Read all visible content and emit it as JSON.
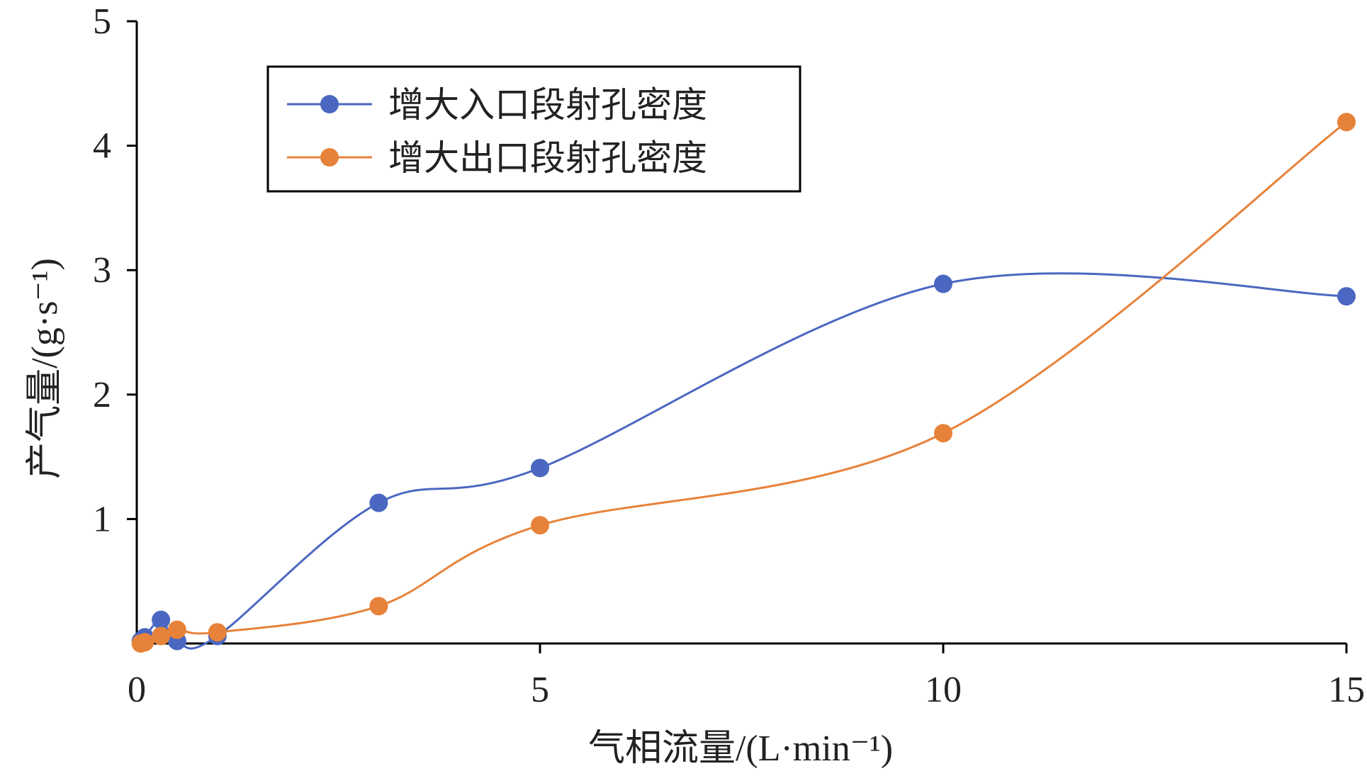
{
  "chart_data": {
    "type": "line",
    "smooth": true,
    "xlabel": "气相流量/(L·min⁻¹)",
    "ylabel": "产气量/(g·s⁻¹)",
    "xlim": [
      0,
      15
    ],
    "ylim": [
      0,
      5
    ],
    "xticks": [
      "0",
      "5",
      "10",
      "15"
    ],
    "yticks": [
      "1",
      "2",
      "3",
      "4",
      "5"
    ],
    "grid": false,
    "legend_position": "top-left",
    "series": [
      {
        "name": "增大入口段射孔密度",
        "color": "#4a67c1",
        "x": [
          0.05,
          0.1,
          0.3,
          0.5,
          1.0,
          3.0,
          5.0,
          10.0,
          15.0
        ],
        "y": [
          0.02,
          0.05,
          0.19,
          0.02,
          0.06,
          1.13,
          1.41,
          2.89,
          2.79
        ]
      },
      {
        "name": "增大出口段射孔密度",
        "color": "#e7823a",
        "x": [
          0.05,
          0.1,
          0.3,
          0.5,
          1.0,
          3.0,
          5.0,
          10.0,
          15.0
        ],
        "y": [
          0.0,
          0.01,
          0.06,
          0.11,
          0.09,
          0.3,
          0.95,
          1.69,
          4.19
        ]
      }
    ]
  }
}
